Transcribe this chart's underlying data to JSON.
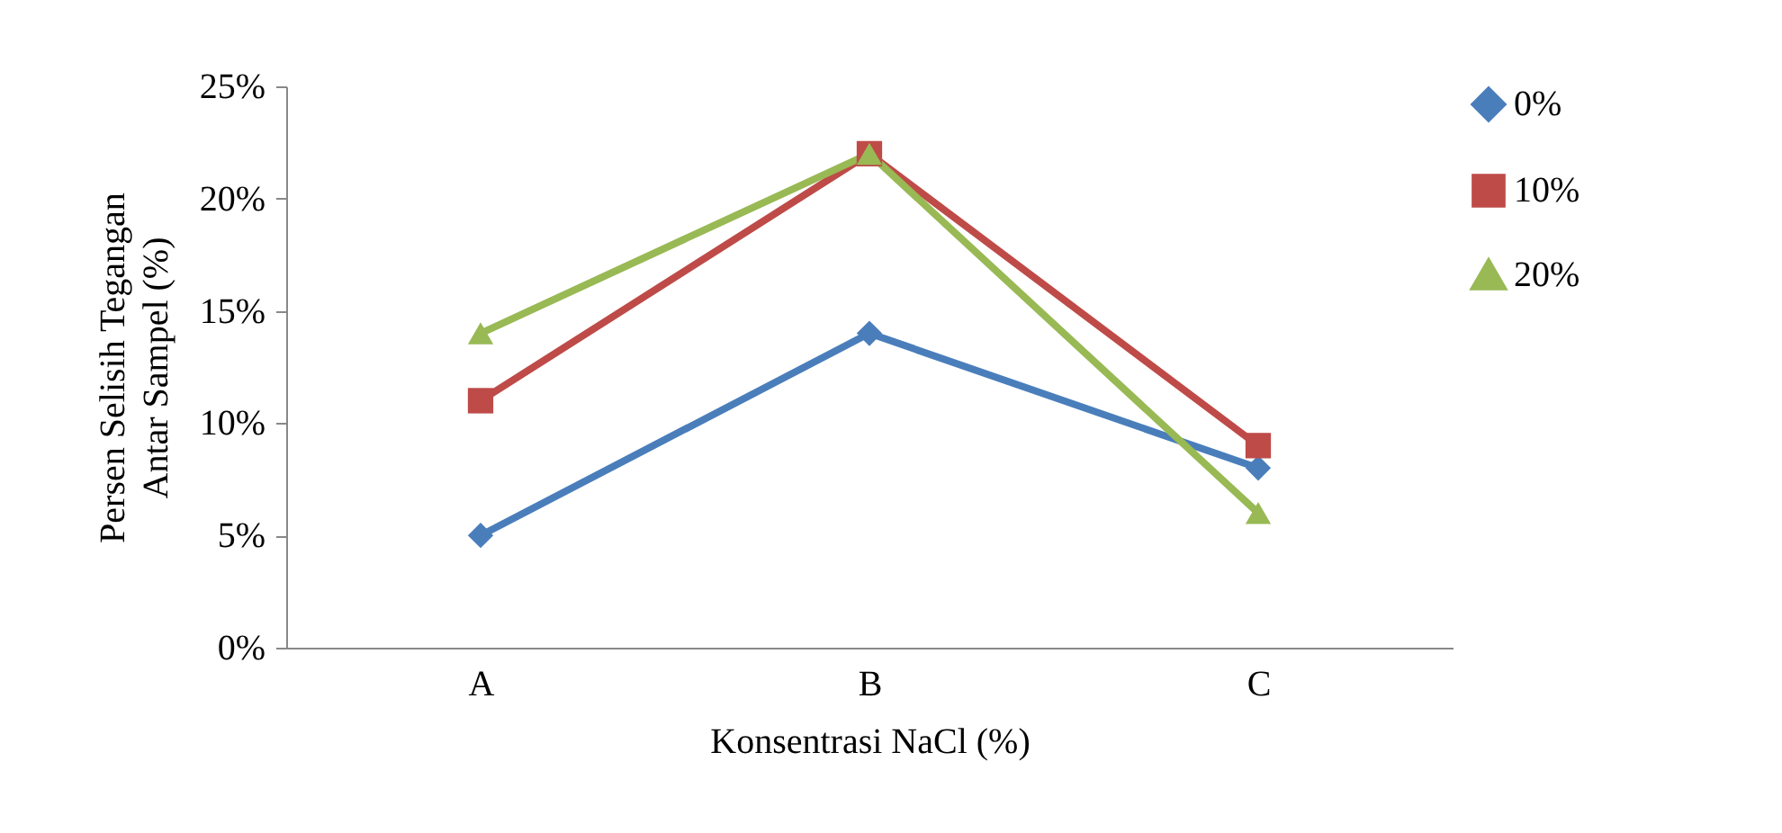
{
  "chart_data": {
    "type": "line",
    "xlabel": "Konsentrasi NaCl (%)",
    "ylabel": "Persen Selisih Tegangan\nAntar  Sampel (%)",
    "categories": [
      "A",
      "B",
      "C"
    ],
    "series": [
      {
        "name": "0%",
        "color": "#4a7ebb",
        "marker": "diamond",
        "values": [
          5,
          14,
          8
        ]
      },
      {
        "name": "10%",
        "color": "#be4b48",
        "marker": "square",
        "values": [
          11,
          22,
          9
        ]
      },
      {
        "name": "20%",
        "color": "#98b954",
        "marker": "triangle",
        "values": [
          14,
          22,
          6
        ]
      }
    ],
    "ylim": [
      0,
      25
    ],
    "yticks": [
      {
        "value": 0,
        "label": "0%"
      },
      {
        "value": 5,
        "label": "5%"
      },
      {
        "value": 10,
        "label": "10%"
      },
      {
        "value": 15,
        "label": "15%"
      },
      {
        "value": 20,
        "label": "20%"
      },
      {
        "value": 25,
        "label": "25%"
      }
    ],
    "grid": false,
    "legend": "right"
  }
}
